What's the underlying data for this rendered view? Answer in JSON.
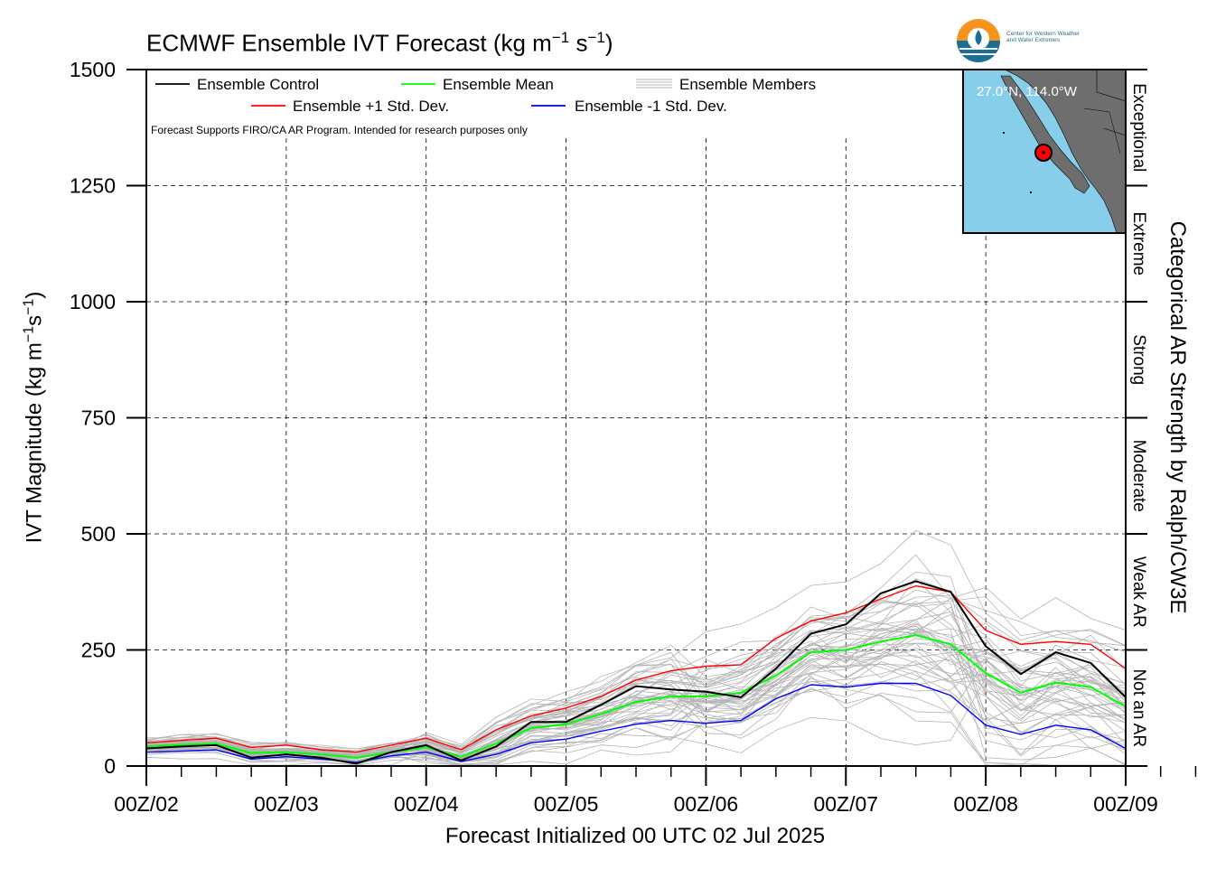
{
  "title": {
    "main": "ECMWF Ensemble IVT Forecast (kg m",
    "exp1": "−1",
    "mid": " s",
    "exp2": "−1",
    "end": ")"
  },
  "ylabel": {
    "pre": "IVT Magnitude (kg m",
    "exp1": "−1",
    "mid": "s",
    "exp2": "−1",
    "end": ")"
  },
  "xlabel": "Forecast Initialized 00 UTC 02 Jul 2025",
  "rlabel": "Categorical AR Strength by Ralph/CW3E",
  "note": "Forecast Supports FIRO/CA AR Program. Intended for research purposes only",
  "logo": {
    "line1": "Center for Western Weather",
    "line2": "and Water Extremes"
  },
  "inset": {
    "location": "27.0°N, 114.0°W",
    "land_color": "#6e6e6e",
    "ocean_color": "#87ceeb",
    "marker_color": "#ff0000"
  },
  "categories": [
    "Not an AR",
    "Weak AR",
    "Moderate",
    "Strong",
    "Extreme",
    "Exceptional"
  ],
  "chart_data": {
    "type": "line",
    "x_ticks": [
      "00Z/02",
      "00Z/03",
      "00Z/04",
      "00Z/05",
      "00Z/06",
      "00Z/07",
      "00Z/08",
      "00Z/09"
    ],
    "y_ticks": [
      0,
      250,
      500,
      750,
      1000,
      1250,
      1500
    ],
    "ylim": [
      0,
      1500
    ],
    "x_range_days": [
      0,
      7
    ],
    "x_step_hours": 6,
    "grid": true,
    "legend_position": "top-left",
    "legend": [
      "Ensemble Control",
      "Ensemble Mean",
      "Ensemble Members",
      "Ensemble +1 Std. Dev.",
      "Ensemble -1 Std. Dev."
    ],
    "series": [
      {
        "name": "Ensemble Control",
        "color": "#000000",
        "values": [
          38,
          42,
          45,
          18,
          25,
          18,
          5,
          30,
          45,
          12,
          42,
          95,
          95,
          132,
          172,
          165,
          160,
          148,
          210,
          285,
          305,
          372,
          398,
          375,
          258,
          198,
          245,
          222,
          148,
          105,
          72,
          57,
          110,
          108,
          65,
          92,
          102,
          82,
          62,
          57,
          72,
          65,
          55,
          37,
          42,
          52,
          72,
          67,
          58,
          95,
          135,
          142,
          148,
          187,
          224,
          198,
          172
        ]
      },
      {
        "name": "Ensemble Mean",
        "color": "#00ff00",
        "values": [
          42,
          46,
          48,
          28,
          30,
          25,
          18,
          30,
          40,
          20,
          48,
          82,
          90,
          112,
          138,
          150,
          150,
          158,
          195,
          245,
          250,
          268,
          282,
          262,
          200,
          158,
          180,
          170,
          128,
          102,
          85,
          82,
          102,
          98,
          80,
          78,
          78,
          80,
          76,
          72,
          75,
          74,
          72,
          70,
          72,
          88,
          112,
          112,
          95,
          112,
          138,
          150,
          165,
          192,
          212,
          198,
          170
        ]
      },
      {
        "name": "Ensemble +1 Std. Dev.",
        "color": "#ff0000",
        "values": [
          50,
          55,
          60,
          40,
          45,
          35,
          30,
          45,
          60,
          35,
          78,
          108,
          125,
          150,
          185,
          205,
          215,
          218,
          275,
          312,
          330,
          360,
          388,
          375,
          292,
          262,
          268,
          262,
          210,
          175,
          150,
          130,
          152,
          142,
          118,
          112,
          110,
          108,
          102,
          98,
          110,
          112,
          118,
          112,
          118,
          142,
          172,
          168,
          138,
          160,
          188,
          200,
          218,
          245,
          272,
          248,
          215
        ]
      },
      {
        "name": "Ensemble -1 Std. Dev.",
        "color": "#0000ff",
        "values": [
          30,
          32,
          35,
          15,
          20,
          15,
          8,
          22,
          30,
          10,
          25,
          50,
          58,
          75,
          90,
          98,
          92,
          98,
          145,
          175,
          170,
          178,
          178,
          152,
          88,
          68,
          88,
          78,
          38,
          25,
          18,
          12,
          62,
          48,
          40,
          42,
          40,
          45,
          38,
          30,
          42,
          42,
          38,
          28,
          30,
          42,
          58,
          56,
          50,
          72,
          92,
          108,
          112,
          132,
          155,
          145,
          122
        ]
      },
      {
        "name": "Ensemble Members",
        "color": "#b4b4b4",
        "note": "50 members spread around the ensemble mean"
      }
    ]
  }
}
